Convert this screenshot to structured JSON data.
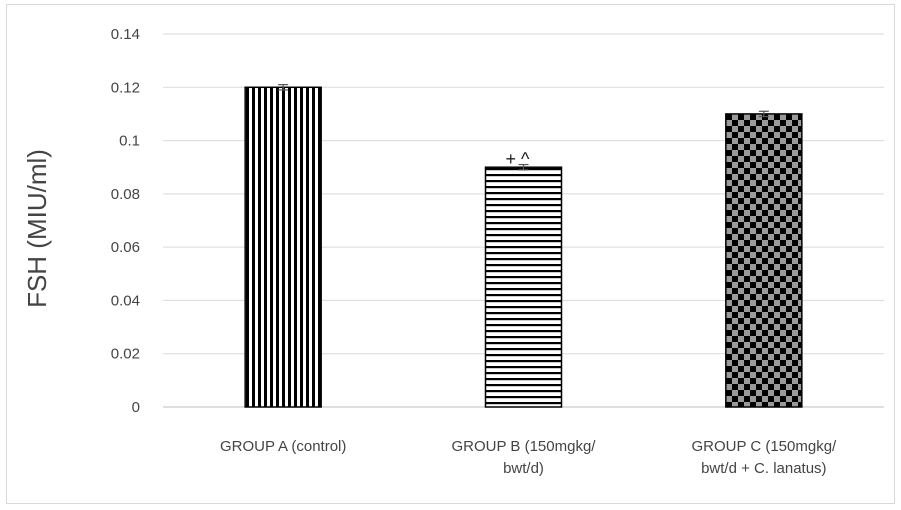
{
  "chart_data": {
    "type": "bar",
    "categories": [
      [
        "GROUP A (control)"
      ],
      [
        "GROUP B (150mgkg/",
        "bwt/d)"
      ],
      [
        "GROUP C (150mgkg/",
        "bwt/d + C. lanatus)"
      ]
    ],
    "values": [
      0.12,
      0.09,
      0.11
    ],
    "errors": [
      0.001,
      0.001,
      0.001
    ],
    "patterns": [
      "vertical-stripes",
      "horizontal-stripes",
      "checkerboard"
    ],
    "annotations": [
      {
        "category_index": 1,
        "text": "+ ^"
      }
    ],
    "ylabel": "FSH (MIU/ml)",
    "xlabel": "",
    "title": "",
    "ylim": [
      0,
      0.14
    ],
    "yticks": [
      {
        "value": 0,
        "label": "0"
      },
      {
        "value": 0.02,
        "label": "0.02"
      },
      {
        "value": 0.04,
        "label": "0.04"
      },
      {
        "value": 0.06,
        "label": "0.06"
      },
      {
        "value": 0.08,
        "label": "0.08"
      },
      {
        "value": 0.1,
        "label": "0.1"
      },
      {
        "value": 0.12,
        "label": "0.12"
      },
      {
        "value": 0.14,
        "label": "0.14"
      }
    ],
    "grid": true,
    "legend": "none",
    "colors": {
      "bar_fill": "#000000",
      "bar_bg": "#ffffff",
      "grid": "#d9d9d9",
      "axis": "#bfbfbf",
      "text": "#444444"
    }
  }
}
